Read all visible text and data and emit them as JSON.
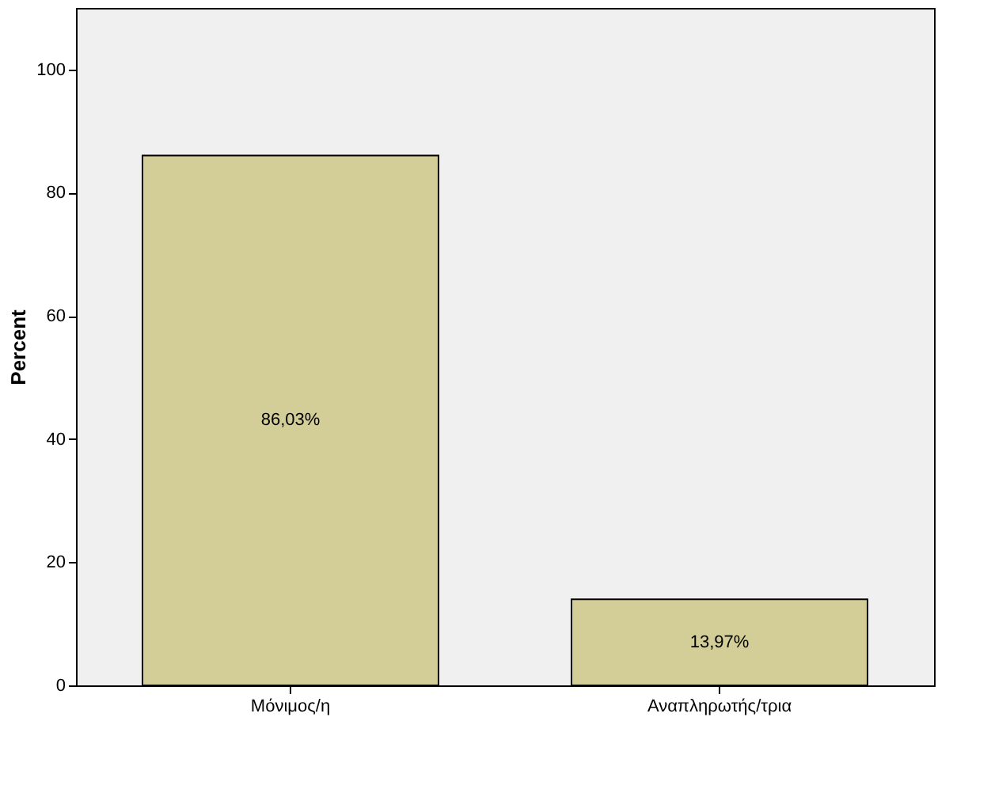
{
  "chart_data": {
    "type": "bar",
    "ylabel": "Percent",
    "categories": [
      "Μόνιμος/η",
      "Αναπληρωτής/τρια"
    ],
    "values": [
      86.03,
      13.97
    ],
    "value_labels": [
      "86,03%",
      "13,97%"
    ],
    "color": "#d3ce97",
    "ylim": [
      0,
      110
    ],
    "yticks": [
      0,
      20,
      40,
      60,
      80,
      100
    ],
    "grid": false
  }
}
